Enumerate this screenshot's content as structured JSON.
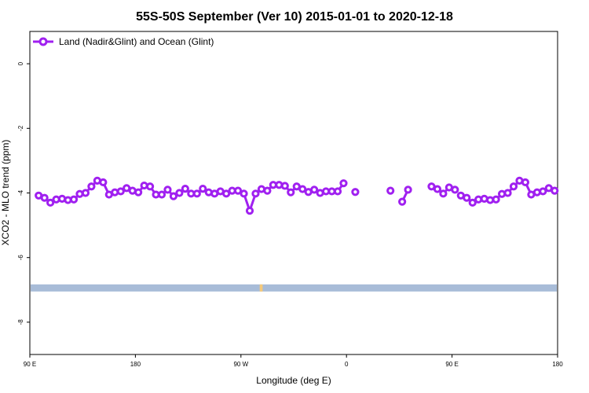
{
  "chart_data": {
    "type": "line",
    "title": "55S-50S September (Ver 10)   2015-01-01 to 2020-12-18",
    "xlabel": "Longitude (deg E)",
    "ylabel": "XCO2 - MLO trend (ppm)",
    "xlim": [
      90,
      540
    ],
    "ylim": [
      -9,
      1
    ],
    "x_ticks": [
      {
        "value": 90,
        "label": "90 E"
      },
      {
        "value": 180,
        "label": "180"
      },
      {
        "value": 270,
        "label": "90 W"
      },
      {
        "value": 360,
        "label": "0"
      },
      {
        "value": 450,
        "label": "90 E"
      },
      {
        "value": 540,
        "label": "180"
      }
    ],
    "y_ticks": [
      {
        "value": 0,
        "label": "0"
      },
      {
        "value": -2,
        "label": "-2"
      },
      {
        "value": -4,
        "label": "-4"
      },
      {
        "value": -6,
        "label": "-6"
      },
      {
        "value": -8,
        "label": "-8"
      }
    ],
    "grid": false,
    "legend_position": "top-left",
    "series": [
      {
        "name": "Land (Nadir&Glint) and Ocean (Glint)",
        "color": "#a020f0",
        "segments": [
          [
            [
              97.5,
              -4.08
            ],
            [
              102.5,
              -4.15
            ],
            [
              107.5,
              -4.3
            ],
            [
              112.5,
              -4.2
            ],
            [
              117.5,
              -4.18
            ],
            [
              122.5,
              -4.22
            ],
            [
              127.5,
              -4.2
            ],
            [
              132.5,
              -4.03
            ],
            [
              137.5,
              -4.0
            ],
            [
              142.5,
              -3.8
            ],
            [
              147.5,
              -3.62
            ],
            [
              152.5,
              -3.67
            ],
            [
              157.5,
              -4.05
            ],
            [
              162.5,
              -3.98
            ],
            [
              167.5,
              -3.95
            ],
            [
              172.5,
              -3.85
            ],
            [
              177.5,
              -3.93
            ],
            [
              182.5,
              -3.98
            ],
            [
              187.5,
              -3.77
            ],
            [
              192.5,
              -3.8
            ],
            [
              197.5,
              -4.05
            ],
            [
              202.5,
              -4.05
            ],
            [
              207.5,
              -3.9
            ],
            [
              212.5,
              -4.1
            ],
            [
              217.5,
              -4.0
            ],
            [
              222.5,
              -3.87
            ],
            [
              227.5,
              -4.02
            ],
            [
              232.5,
              -4.02
            ],
            [
              237.5,
              -3.87
            ],
            [
              242.5,
              -3.98
            ],
            [
              247.5,
              -4.02
            ],
            [
              252.5,
              -3.95
            ],
            [
              257.5,
              -4.02
            ],
            [
              262.5,
              -3.93
            ],
            [
              267.5,
              -3.93
            ],
            [
              272.5,
              -4.02
            ],
            [
              277.5,
              -4.55
            ],
            [
              282.5,
              -4.02
            ],
            [
              287.5,
              -3.88
            ],
            [
              292.5,
              -3.93
            ],
            [
              297.5,
              -3.75
            ],
            [
              302.5,
              -3.75
            ],
            [
              307.5,
              -3.78
            ],
            [
              312.5,
              -3.98
            ],
            [
              317.5,
              -3.8
            ],
            [
              322.5,
              -3.88
            ],
            [
              327.5,
              -3.97
            ],
            [
              332.5,
              -3.9
            ],
            [
              337.5,
              -4.0
            ],
            [
              342.5,
              -3.95
            ],
            [
              347.5,
              -3.95
            ],
            [
              352.5,
              -3.95
            ],
            [
              357.5,
              -3.7
            ]
          ],
          [
            [
              367.5,
              -3.97
            ]
          ],
          [
            [
              397.5,
              -3.93
            ]
          ],
          [
            [
              407.5,
              -4.27
            ],
            [
              412.5,
              -3.9
            ]
          ],
          [
            [
              432.5,
              -3.8
            ],
            [
              437.5,
              -3.88
            ],
            [
              442.5,
              -4.02
            ],
            [
              447.5,
              -3.83
            ],
            [
              452.5,
              -3.9
            ]
          ],
          [
            [
              457.5,
              -4.08
            ],
            [
              462.5,
              -4.15
            ],
            [
              467.5,
              -4.3
            ],
            [
              472.5,
              -4.2
            ],
            [
              477.5,
              -4.18
            ],
            [
              482.5,
              -4.22
            ],
            [
              487.5,
              -4.2
            ],
            [
              492.5,
              -4.03
            ],
            [
              497.5,
              -4.0
            ],
            [
              502.5,
              -3.8
            ],
            [
              507.5,
              -3.62
            ],
            [
              512.5,
              -3.67
            ],
            [
              517.5,
              -4.05
            ],
            [
              522.5,
              -3.98
            ],
            [
              527.5,
              -3.95
            ],
            [
              532.5,
              -3.85
            ],
            [
              537.5,
              -3.93
            ]
          ]
        ]
      }
    ],
    "map_strip": {
      "y_top": -6.83,
      "y_bottom": -7.05,
      "ocean_color": "#a8bcd8",
      "land_color": "#f5c97a",
      "land_x": [
        286,
        288.5
      ]
    }
  }
}
